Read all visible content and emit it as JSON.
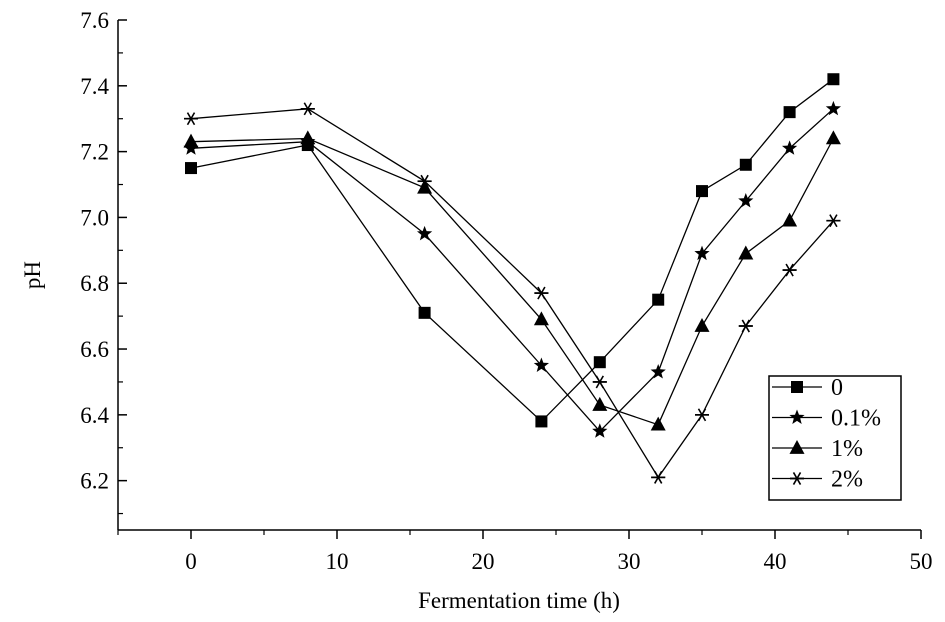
{
  "chart_data": {
    "type": "line",
    "xlabel": "Fermentation time (h)",
    "ylabel": "pH",
    "xlim": [
      -5,
      50
    ],
    "ylim": [
      6.05,
      7.6
    ],
    "x_ticks": [
      0,
      10,
      20,
      30,
      40,
      50
    ],
    "y_ticks": [
      6.2,
      6.4,
      6.6,
      6.8,
      7.0,
      7.2,
      7.4,
      7.6
    ],
    "y_tick_labels": [
      "6.2",
      "6.4",
      "6.6",
      "6.8",
      "7.0",
      "7.2",
      "7.4",
      "7.6"
    ],
    "grid": false,
    "legend_position": "bottom-right",
    "series": [
      {
        "name": "0",
        "marker": "square",
        "x": [
          0,
          8,
          16,
          24,
          28,
          32,
          35,
          38,
          41,
          44
        ],
        "y": [
          7.15,
          7.22,
          6.71,
          6.38,
          6.56,
          6.75,
          7.08,
          7.16,
          7.32,
          7.42
        ]
      },
      {
        "name": "0.1%",
        "marker": "star",
        "x": [
          0,
          8,
          16,
          24,
          28,
          32,
          35,
          38,
          41,
          44
        ],
        "y": [
          7.21,
          7.23,
          6.95,
          6.55,
          6.35,
          6.53,
          6.89,
          7.05,
          7.21,
          7.33
        ]
      },
      {
        "name": "1%",
        "marker": "triangle",
        "x": [
          0,
          8,
          16,
          24,
          28,
          32,
          35,
          38,
          41,
          44
        ],
        "y": [
          7.23,
          7.24,
          7.09,
          6.69,
          6.43,
          6.37,
          6.67,
          6.89,
          6.99,
          7.24
        ]
      },
      {
        "name": "2%",
        "marker": "asterisk",
        "x": [
          0,
          8,
          16,
          24,
          28,
          32,
          35,
          38,
          41,
          44
        ],
        "y": [
          7.3,
          7.33,
          7.11,
          6.77,
          6.5,
          6.21,
          6.4,
          6.67,
          6.84,
          6.99
        ]
      }
    ]
  }
}
